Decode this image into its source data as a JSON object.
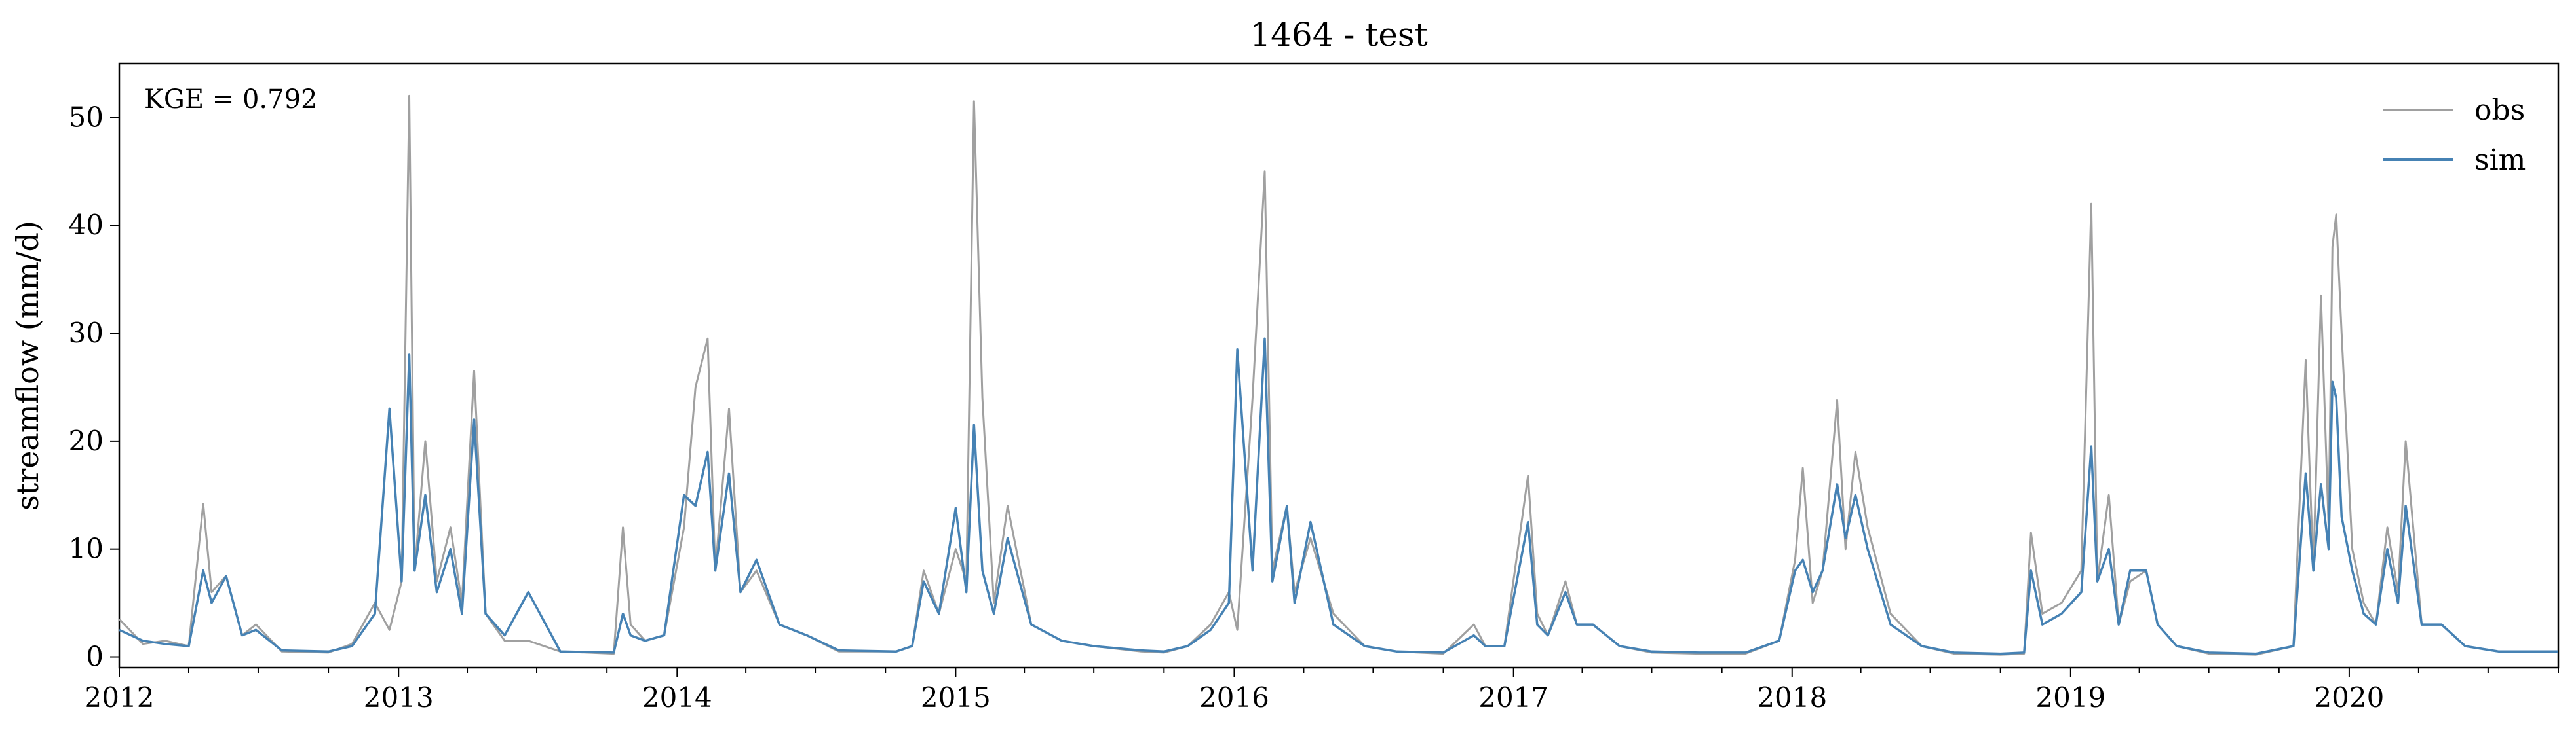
{
  "chart_data": {
    "type": "line",
    "title": "1464 - test",
    "xlabel": "",
    "ylabel": "streamflow (mm/d)",
    "annotation": "KGE = 0.792",
    "xlim": [
      "2012-01-01",
      "2020-10-01"
    ],
    "ylim": [
      -1,
      55
    ],
    "x_ticks": [
      "2012",
      "2013",
      "2014",
      "2015",
      "2016",
      "2017",
      "2018",
      "2019",
      "2020"
    ],
    "y_ticks": [
      0,
      10,
      20,
      30,
      40,
      50
    ],
    "grid": false,
    "legend_position": "top-right",
    "series": [
      {
        "name": "obs",
        "color": "#a0a0a0",
        "x": [
          "2012-01-01",
          "2012-02-01",
          "2012-03-01",
          "2012-04-01",
          "2012-04-20",
          "2012-05-01",
          "2012-05-20",
          "2012-06-10",
          "2012-06-28",
          "2012-08-01",
          "2012-10-01",
          "2012-11-01",
          "2012-12-01",
          "2012-12-20",
          "2013-01-05",
          "2013-01-15",
          "2013-01-22",
          "2013-02-05",
          "2013-02-20",
          "2013-03-10",
          "2013-03-25",
          "2013-04-10",
          "2013-04-25",
          "2013-05-20",
          "2013-06-20",
          "2013-08-01",
          "2013-10-10",
          "2013-10-22",
          "2013-11-01",
          "2013-11-20",
          "2013-12-15",
          "2014-01-10",
          "2014-01-25",
          "2014-02-10",
          "2014-02-20",
          "2014-03-10",
          "2014-03-25",
          "2014-04-15",
          "2014-05-15",
          "2014-06-20",
          "2014-08-01",
          "2014-10-15",
          "2014-11-05",
          "2014-11-20",
          "2014-12-10",
          "2015-01-01",
          "2015-01-15",
          "2015-01-25",
          "2015-02-05",
          "2015-02-20",
          "2015-03-10",
          "2015-04-10",
          "2015-05-20",
          "2015-07-01",
          "2015-09-01",
          "2015-10-01",
          "2015-11-01",
          "2015-12-01",
          "2015-12-25",
          "2016-01-05",
          "2016-01-25",
          "2016-02-10",
          "2016-02-20",
          "2016-03-10",
          "2016-03-20",
          "2016-04-10",
          "2016-05-10",
          "2016-06-20",
          "2016-08-01",
          "2016-10-01",
          "2016-11-10",
          "2016-11-25",
          "2016-12-20",
          "2017-01-20",
          "2017-02-01",
          "2017-02-15",
          "2017-03-10",
          "2017-03-25",
          "2017-04-15",
          "2017-05-20",
          "2017-07-01",
          "2017-09-01",
          "2017-11-01",
          "2017-12-15",
          "2018-01-05",
          "2018-01-15",
          "2018-01-28",
          "2018-02-10",
          "2018-03-01",
          "2018-03-12",
          "2018-03-25",
          "2018-04-10",
          "2018-05-10",
          "2018-06-20",
          "2018-08-01",
          "2018-10-01",
          "2018-11-01",
          "2018-11-10",
          "2018-11-25",
          "2018-12-20",
          "2019-01-15",
          "2019-01-28",
          "2019-02-05",
          "2019-02-20",
          "2019-03-05",
          "2019-03-20",
          "2019-04-10",
          "2019-04-25",
          "2019-05-20",
          "2019-07-01",
          "2019-09-01",
          "2019-10-20",
          "2019-11-05",
          "2019-11-15",
          "2019-11-25",
          "2019-12-05",
          "2019-12-10",
          "2019-12-15",
          "2019-12-22",
          "2020-01-05",
          "2020-01-20",
          "2020-02-05",
          "2020-02-20",
          "2020-03-05",
          "2020-03-15",
          "2020-04-05",
          "2020-05-01",
          "2020-06-01",
          "2020-07-15",
          "2020-09-01",
          "2020-10-01"
        ],
        "y": [
          3.5,
          1.2,
          1.5,
          1,
          14.2,
          6,
          7.5,
          2,
          3,
          0.5,
          0.4,
          1.2,
          5,
          2.5,
          7,
          52,
          8,
          20,
          7,
          12,
          5,
          26.5,
          4,
          1.5,
          1.5,
          0.5,
          0.3,
          12,
          3,
          1.5,
          2,
          12,
          25,
          29.5,
          8,
          23,
          6,
          8,
          3,
          2,
          0.5,
          0.5,
          1,
          8,
          4,
          10,
          7,
          51.5,
          24,
          5,
          14,
          3,
          1.5,
          1,
          0.5,
          0.4,
          1,
          3,
          6,
          2.5,
          24,
          45,
          8,
          14,
          6,
          11,
          4,
          1,
          0.5,
          0.3,
          3,
          1,
          1,
          16.8,
          4,
          2,
          7,
          3,
          3,
          1,
          0.4,
          0.3,
          0.3,
          1.5,
          9,
          17.5,
          5,
          8,
          23.8,
          10,
          19,
          12,
          4,
          1,
          0.3,
          0.2,
          0.3,
          11.5,
          4,
          5,
          8,
          42,
          7,
          15,
          3,
          7,
          8,
          3,
          1,
          0.3,
          0.2,
          1,
          27.5,
          8,
          33.5,
          12,
          38,
          41,
          30,
          10,
          5,
          3,
          12,
          6,
          20,
          3,
          3,
          1,
          0.5,
          0.5,
          0.5
        ]
      },
      {
        "name": "sim",
        "color": "#4682b4",
        "x": [
          "2012-01-01",
          "2012-02-01",
          "2012-03-01",
          "2012-04-01",
          "2012-04-20",
          "2012-05-01",
          "2012-05-20",
          "2012-06-10",
          "2012-06-28",
          "2012-08-01",
          "2012-10-01",
          "2012-11-01",
          "2012-12-01",
          "2012-12-20",
          "2013-01-05",
          "2013-01-15",
          "2013-01-22",
          "2013-02-05",
          "2013-02-20",
          "2013-03-10",
          "2013-03-25",
          "2013-04-10",
          "2013-04-25",
          "2013-05-20",
          "2013-06-20",
          "2013-08-01",
          "2013-10-10",
          "2013-10-22",
          "2013-11-01",
          "2013-11-20",
          "2013-12-15",
          "2014-01-10",
          "2014-01-25",
          "2014-02-10",
          "2014-02-20",
          "2014-03-10",
          "2014-03-25",
          "2014-04-15",
          "2014-05-15",
          "2014-06-20",
          "2014-08-01",
          "2014-10-15",
          "2014-11-05",
          "2014-11-20",
          "2014-12-10",
          "2015-01-01",
          "2015-01-15",
          "2015-01-25",
          "2015-02-05",
          "2015-02-20",
          "2015-03-10",
          "2015-04-10",
          "2015-05-20",
          "2015-07-01",
          "2015-09-01",
          "2015-10-01",
          "2015-11-01",
          "2015-12-01",
          "2015-12-25",
          "2016-01-05",
          "2016-01-25",
          "2016-02-10",
          "2016-02-20",
          "2016-03-10",
          "2016-03-20",
          "2016-04-10",
          "2016-05-10",
          "2016-06-20",
          "2016-08-01",
          "2016-10-01",
          "2016-11-10",
          "2016-11-25",
          "2016-12-20",
          "2017-01-20",
          "2017-02-01",
          "2017-02-15",
          "2017-03-10",
          "2017-03-25",
          "2017-04-15",
          "2017-05-20",
          "2017-07-01",
          "2017-09-01",
          "2017-11-01",
          "2017-12-15",
          "2018-01-05",
          "2018-01-15",
          "2018-01-28",
          "2018-02-10",
          "2018-03-01",
          "2018-03-12",
          "2018-03-25",
          "2018-04-10",
          "2018-05-10",
          "2018-06-20",
          "2018-08-01",
          "2018-10-01",
          "2018-11-01",
          "2018-11-10",
          "2018-11-25",
          "2018-12-20",
          "2019-01-15",
          "2019-01-28",
          "2019-02-05",
          "2019-02-20",
          "2019-03-05",
          "2019-03-20",
          "2019-04-10",
          "2019-04-25",
          "2019-05-20",
          "2019-07-01",
          "2019-09-01",
          "2019-10-20",
          "2019-11-05",
          "2019-11-15",
          "2019-11-25",
          "2019-12-05",
          "2019-12-10",
          "2019-12-15",
          "2019-12-22",
          "2020-01-05",
          "2020-01-20",
          "2020-02-05",
          "2020-02-20",
          "2020-03-05",
          "2020-03-15",
          "2020-04-05",
          "2020-05-01",
          "2020-06-01",
          "2020-07-15",
          "2020-09-01",
          "2020-10-01"
        ],
        "y": [
          2.5,
          1.5,
          1.2,
          1,
          8,
          5,
          7.5,
          2,
          2.5,
          0.6,
          0.5,
          1,
          4,
          23,
          7,
          28,
          8,
          15,
          6,
          10,
          4,
          22,
          4,
          2,
          6,
          0.5,
          0.4,
          4,
          2,
          1.5,
          2,
          15,
          14,
          19,
          8,
          17,
          6,
          9,
          3,
          2,
          0.6,
          0.5,
          1,
          7,
          4,
          13.8,
          6,
          21.5,
          8,
          4,
          11,
          3,
          1.5,
          1,
          0.6,
          0.5,
          1,
          2.5,
          5,
          28.5,
          8,
          29.5,
          7,
          14,
          5,
          12.5,
          3,
          1,
          0.5,
          0.4,
          2,
          1,
          1,
          12.5,
          3,
          2,
          6,
          3,
          3,
          1,
          0.5,
          0.4,
          0.4,
          1.5,
          8,
          9,
          6,
          8,
          16,
          11,
          15,
          10,
          3,
          1,
          0.4,
          0.3,
          0.4,
          8,
          3,
          4,
          6,
          19.5,
          7,
          10,
          3,
          8,
          8,
          3,
          1,
          0.4,
          0.3,
          1,
          17,
          8,
          16,
          10,
          25.5,
          24,
          13,
          8,
          4,
          3,
          10,
          5,
          14,
          3,
          3,
          1,
          0.5,
          0.5,
          0.5
        ]
      }
    ]
  }
}
